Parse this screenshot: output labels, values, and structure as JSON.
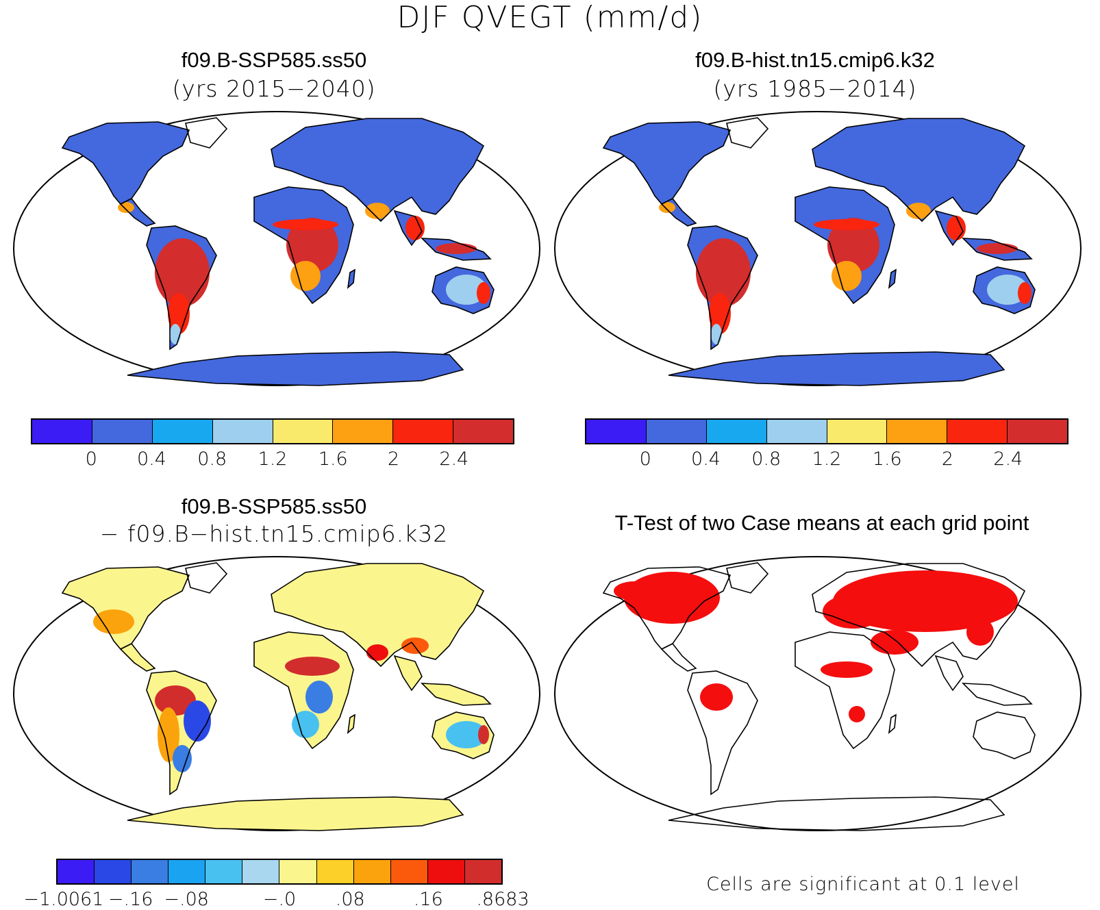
{
  "title": "DJF QVEGT (mm/d)",
  "panels": [
    {
      "id": "case1",
      "title": "f09.B-SSP585.ss50",
      "subtitle": "(yrs 2015−2040)"
    },
    {
      "id": "case2",
      "title": "f09.B-hist.tn15.cmip6.k32",
      "subtitle": "(yrs 1985−2014)"
    },
    {
      "id": "diff",
      "title": "f09.B-SSP585.ss50",
      "subtitle": "− f09.B−hist.tn15.cmip6.k32"
    },
    {
      "id": "ttest",
      "title": "T-Test of two Case means at each grid point",
      "note": "Cells are significant at 0.1 level"
    }
  ],
  "colorbars": {
    "mean": {
      "colors": [
        "#3b1cf5",
        "#4468dd",
        "#18a8f0",
        "#9ecfee",
        "#f9ea6c",
        "#fda012",
        "#f9250e",
        "#d42d2d"
      ],
      "labels": [
        "0",
        "0.4",
        "0.8",
        "1.2",
        "1.6",
        "2",
        "2.4"
      ]
    },
    "diff": {
      "colors": [
        "#3b1cf5",
        "#2a48e6",
        "#3a7de3",
        "#1aa3f0",
        "#48c1f0",
        "#a9d7ef",
        "#fbf58e",
        "#fcd028",
        "#fba30c",
        "#fb5a0c",
        "#ee0e0e",
        "#d22d2d"
      ],
      "labels": [
        "−1.0061",
        "−.16",
        "−.08",
        "−.0",
        ".08",
        ".16",
        ".8683"
      ]
    }
  },
  "map_colors": {
    "ocean": "#ffffff",
    "coast": "#000000",
    "significant": "#f40e0e"
  }
}
